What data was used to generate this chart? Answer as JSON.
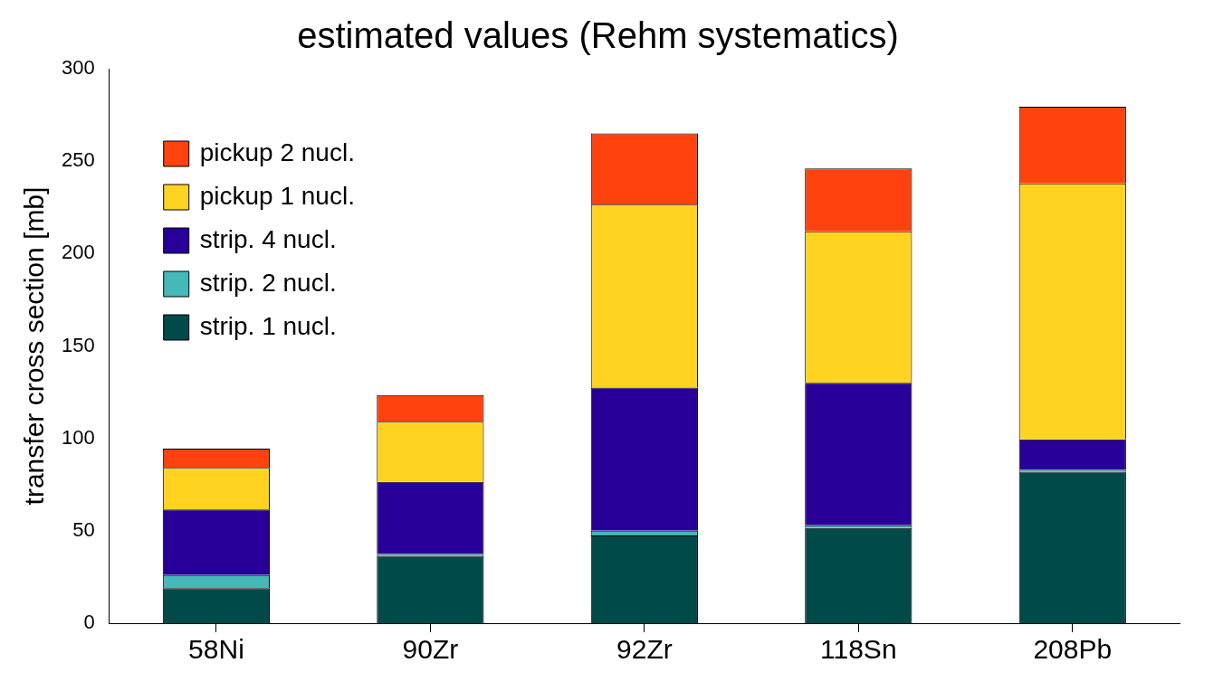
{
  "chart_data": {
    "type": "bar",
    "title": "estimated values (Rehm systematics)",
    "ylabel": "transfer cross section [mb]",
    "categories": [
      "58Ni",
      "90Zr",
      "92Zr",
      "118Sn",
      "208Pb"
    ],
    "stacked": true,
    "series": [
      {
        "name": "strip. 1 nucl.",
        "color": "#004a4a",
        "values": [
          19,
          36.5,
          47.5,
          51.5,
          82
        ]
      },
      {
        "name": "strip. 2 nucl.",
        "color": "#45b8b8",
        "values": [
          7,
          1,
          2.5,
          1.5,
          1
        ]
      },
      {
        "name": "strip. 4 nucl.",
        "color": "#280099",
        "values": [
          35.5,
          39,
          77.5,
          77,
          16.5
        ]
      },
      {
        "name": "pickup 1 nucl.",
        "color": "#ffd320",
        "values": [
          22.5,
          32.5,
          99,
          82,
          138.5
        ]
      },
      {
        "name": "pickup 2 nucl.",
        "color": "#ff420e",
        "values": [
          10.5,
          14.5,
          38.5,
          34,
          41.5
        ]
      }
    ],
    "ylim": [
      0,
      300
    ],
    "yticks": [
      0,
      50,
      100,
      150,
      200,
      250,
      300
    ],
    "grid": false,
    "legend": "top left"
  }
}
